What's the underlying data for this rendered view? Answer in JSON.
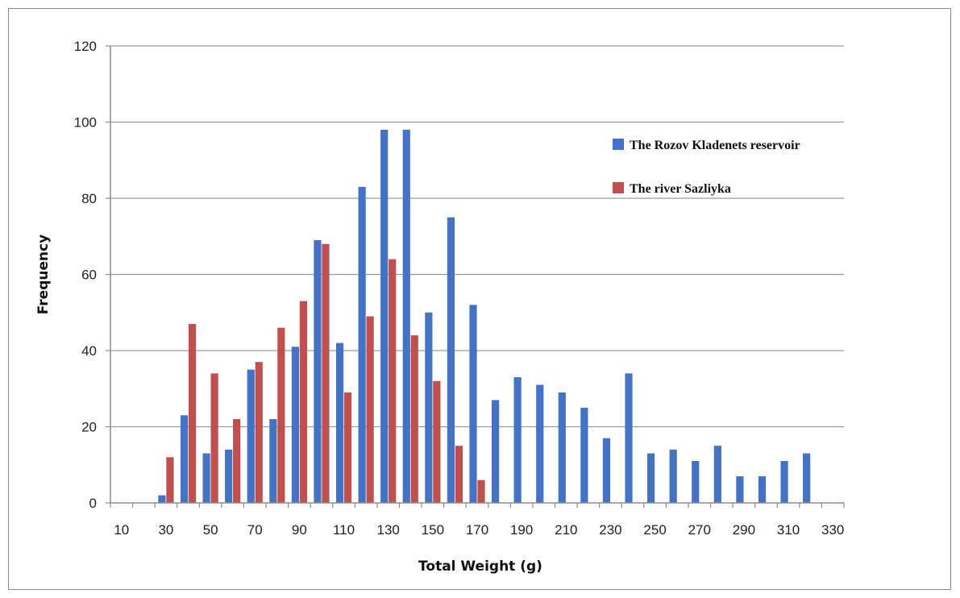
{
  "chart_data": {
    "type": "bar",
    "title": "",
    "xlabel": "Total Weight (g)",
    "ylabel": "Frequency",
    "ylim": [
      0,
      120
    ],
    "yticks": [
      0,
      20,
      40,
      60,
      80,
      100,
      120
    ],
    "grid": "horizontal",
    "legend_position": "top-right",
    "categories": [
      "10",
      "20",
      "30",
      "40",
      "50",
      "60",
      "70",
      "80",
      "90",
      "100",
      "110",
      "120",
      "130",
      "140",
      "150",
      "160",
      "170",
      "180",
      "190",
      "200",
      "210",
      "220",
      "230",
      "240",
      "250",
      "260",
      "270",
      "280",
      "290",
      "300",
      "310",
      "320",
      "330"
    ],
    "x_tick_labels": [
      "10",
      "30",
      "50",
      "70",
      "90",
      "110",
      "130",
      "150",
      "170",
      "190",
      "210",
      "230",
      "250",
      "270",
      "290",
      "310",
      "330"
    ],
    "series": [
      {
        "name": "The Rozov Kladenets reservoir",
        "color": "#4472c4",
        "values": [
          0,
          0,
          2,
          23,
          13,
          14,
          35,
          22,
          41,
          69,
          42,
          83,
          98,
          98,
          50,
          75,
          52,
          27,
          33,
          31,
          29,
          25,
          17,
          34,
          13,
          14,
          11,
          15,
          7,
          7,
          11,
          13,
          0
        ]
      },
      {
        "name": "The river Sazliyka",
        "color": "#c0504d",
        "values": [
          0,
          0,
          12,
          47,
          34,
          22,
          37,
          46,
          53,
          68,
          29,
          49,
          64,
          44,
          32,
          15,
          6,
          0,
          0,
          0,
          0,
          0,
          0,
          0,
          0,
          0,
          0,
          0,
          0,
          0,
          0,
          0,
          0
        ]
      }
    ]
  }
}
